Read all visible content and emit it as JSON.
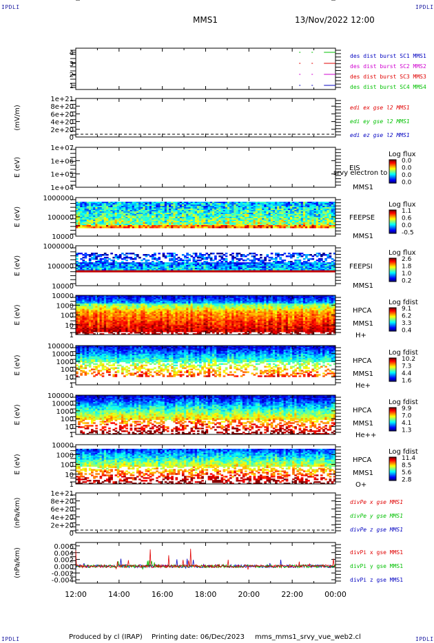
{
  "corner_label": "IPDLI",
  "header": {
    "spacecraft": "MMS1",
    "datetime": "13/Nov/2022 12:00"
  },
  "footer": {
    "produced": "Produced by cl (IRAP)",
    "printing": "Printing date: 06/Dec/2023",
    "file": "mms_mms1_srvy_vue_web2.cl"
  },
  "time_axis": {
    "ticks": [
      "12:00",
      "14:00",
      "16:00",
      "18:00",
      "20:00",
      "22:00",
      "00:00"
    ]
  },
  "colors": {
    "red": "#e00000",
    "green": "#00c000",
    "blue": "#0000c0",
    "magenta": "#d000d0",
    "burst_red": "#ff2a2a"
  },
  "chart_data": [
    {
      "type": "line",
      "id": "burst",
      "yticks": [
        "1",
        "2",
        "3",
        "4"
      ],
      "yrange": [
        0.6,
        4.4
      ],
      "series": [
        {
          "name": "des dist burst SC1 MMS1",
          "color": "#0000c0",
          "level": 1
        },
        {
          "name": "des dist burst SC2 MMS2",
          "color": "#d000d0",
          "level": 2
        },
        {
          "name": "des dist burst SC3 MMS3",
          "color": "#e00000",
          "level": 3
        },
        {
          "name": "des dist burst SC4 MMS4",
          "color": "#00c000",
          "level": 4
        }
      ],
      "burst_start_fraction": 0.86
    },
    {
      "type": "line",
      "id": "edi",
      "ylabel": "(mV/m)",
      "yticks": [
        "1e+21",
        "8e+20",
        "6e+20",
        "4e+20",
        "2e+20",
        "0"
      ],
      "series": [
        {
          "name": "edi ex gse l2 MMS1",
          "color": "#e00000"
        },
        {
          "name": "edi ey gse l2 MMS1",
          "color": "#00c000"
        },
        {
          "name": "edi ez gse l2 MMS1",
          "color": "#0000c0"
        }
      ]
    },
    {
      "type": "heatmap",
      "id": "eis",
      "ylabel": "E (eV)",
      "yticks": [
        "1e+07",
        "1e+06",
        "1e+05",
        "1e+04"
      ],
      "labels": [
        "EIS",
        "MMS1"
      ],
      "overlay_label": "srvy electron to",
      "cbar_title": "Log flux",
      "cbar_ticks": [
        "0.0",
        "0.0",
        "0.0",
        "0.0"
      ],
      "empty": true
    },
    {
      "type": "heatmap",
      "id": "feepse",
      "ylabel": "E (eV)",
      "yticks": [
        "1000000",
        "100000",
        "10000"
      ],
      "labels": [
        "FEEPSE",
        "MMS1"
      ],
      "cbar_title": "Log flux",
      "cbar_ticks": [
        "1.1",
        "0.6",
        "0.0",
        "-0.5"
      ]
    },
    {
      "type": "heatmap",
      "id": "feepsi",
      "ylabel": "E (eV)",
      "yticks": [
        "1000000",
        "100000",
        "10000"
      ],
      "labels": [
        "FEEPSI",
        "MMS1"
      ],
      "cbar_title": "Log flux",
      "cbar_ticks": [
        "2.6",
        "1.8",
        "1.0",
        "0.2"
      ]
    },
    {
      "type": "heatmap",
      "id": "hpca_h",
      "ylabel": "E (eV)",
      "yticks": [
        "10000",
        "1000",
        "100",
        "10",
        "1"
      ],
      "labels": [
        "HPCA",
        "MMS1",
        "H+"
      ],
      "cbar_title": "Log fdist",
      "cbar_ticks": [
        "9.1",
        "6.2",
        "3.3",
        "0.4"
      ]
    },
    {
      "type": "heatmap",
      "id": "hpca_he",
      "ylabel": "E (eV)",
      "yticks": [
        "100000",
        "10000",
        "1000",
        "100",
        "10",
        "1"
      ],
      "labels": [
        "HPCA",
        "MMS1",
        "He+"
      ],
      "cbar_title": "Log fdist",
      "cbar_ticks": [
        "10.2",
        "7.3",
        "4.4",
        "1.6"
      ]
    },
    {
      "type": "heatmap",
      "id": "hpca_hepp",
      "ylabel": "E (eV)",
      "yticks": [
        "100000",
        "10000",
        "1000",
        "100",
        "10",
        "1"
      ],
      "labels": [
        "HPCA",
        "MMS1",
        "He++"
      ],
      "cbar_title": "Log fdist",
      "cbar_ticks": [
        "9.9",
        "7.0",
        "4.1",
        "1.3"
      ]
    },
    {
      "type": "heatmap",
      "id": "hpca_o",
      "ylabel": "E (eV)",
      "yticks": [
        "10000",
        "1000",
        "100",
        "10",
        "1"
      ],
      "labels": [
        "HPCA",
        "MMS1",
        "O+"
      ],
      "cbar_title": "Log fdist",
      "cbar_ticks": [
        "11.4",
        "8.5",
        "5.6",
        "2.8"
      ]
    },
    {
      "type": "line",
      "id": "divpe",
      "ylabel": "(nPa/km)",
      "yticks": [
        "1e+21",
        "8e+20",
        "6e+20",
        "4e+20",
        "2e+20",
        "0"
      ],
      "series": [
        {
          "name": "divPe x gse MMS1",
          "color": "#e00000"
        },
        {
          "name": "divPe y gse MMS1",
          "color": "#00c000"
        },
        {
          "name": "divPe z gse MMS1",
          "color": "#0000c0"
        }
      ]
    },
    {
      "type": "line",
      "id": "divpi",
      "ylabel": "(nPa/km)",
      "yticks": [
        "0.006",
        "0.004",
        "0.002",
        "0.000",
        "-0.002",
        "-0.004"
      ],
      "yrange": [
        -0.005,
        0.007
      ],
      "series": [
        {
          "name": "divPi x gse MMS1",
          "color": "#e00000"
        },
        {
          "name": "divPi y gse MMS1",
          "color": "#00c000"
        },
        {
          "name": "divPi z gse MMS1",
          "color": "#0000c0"
        }
      ]
    }
  ]
}
